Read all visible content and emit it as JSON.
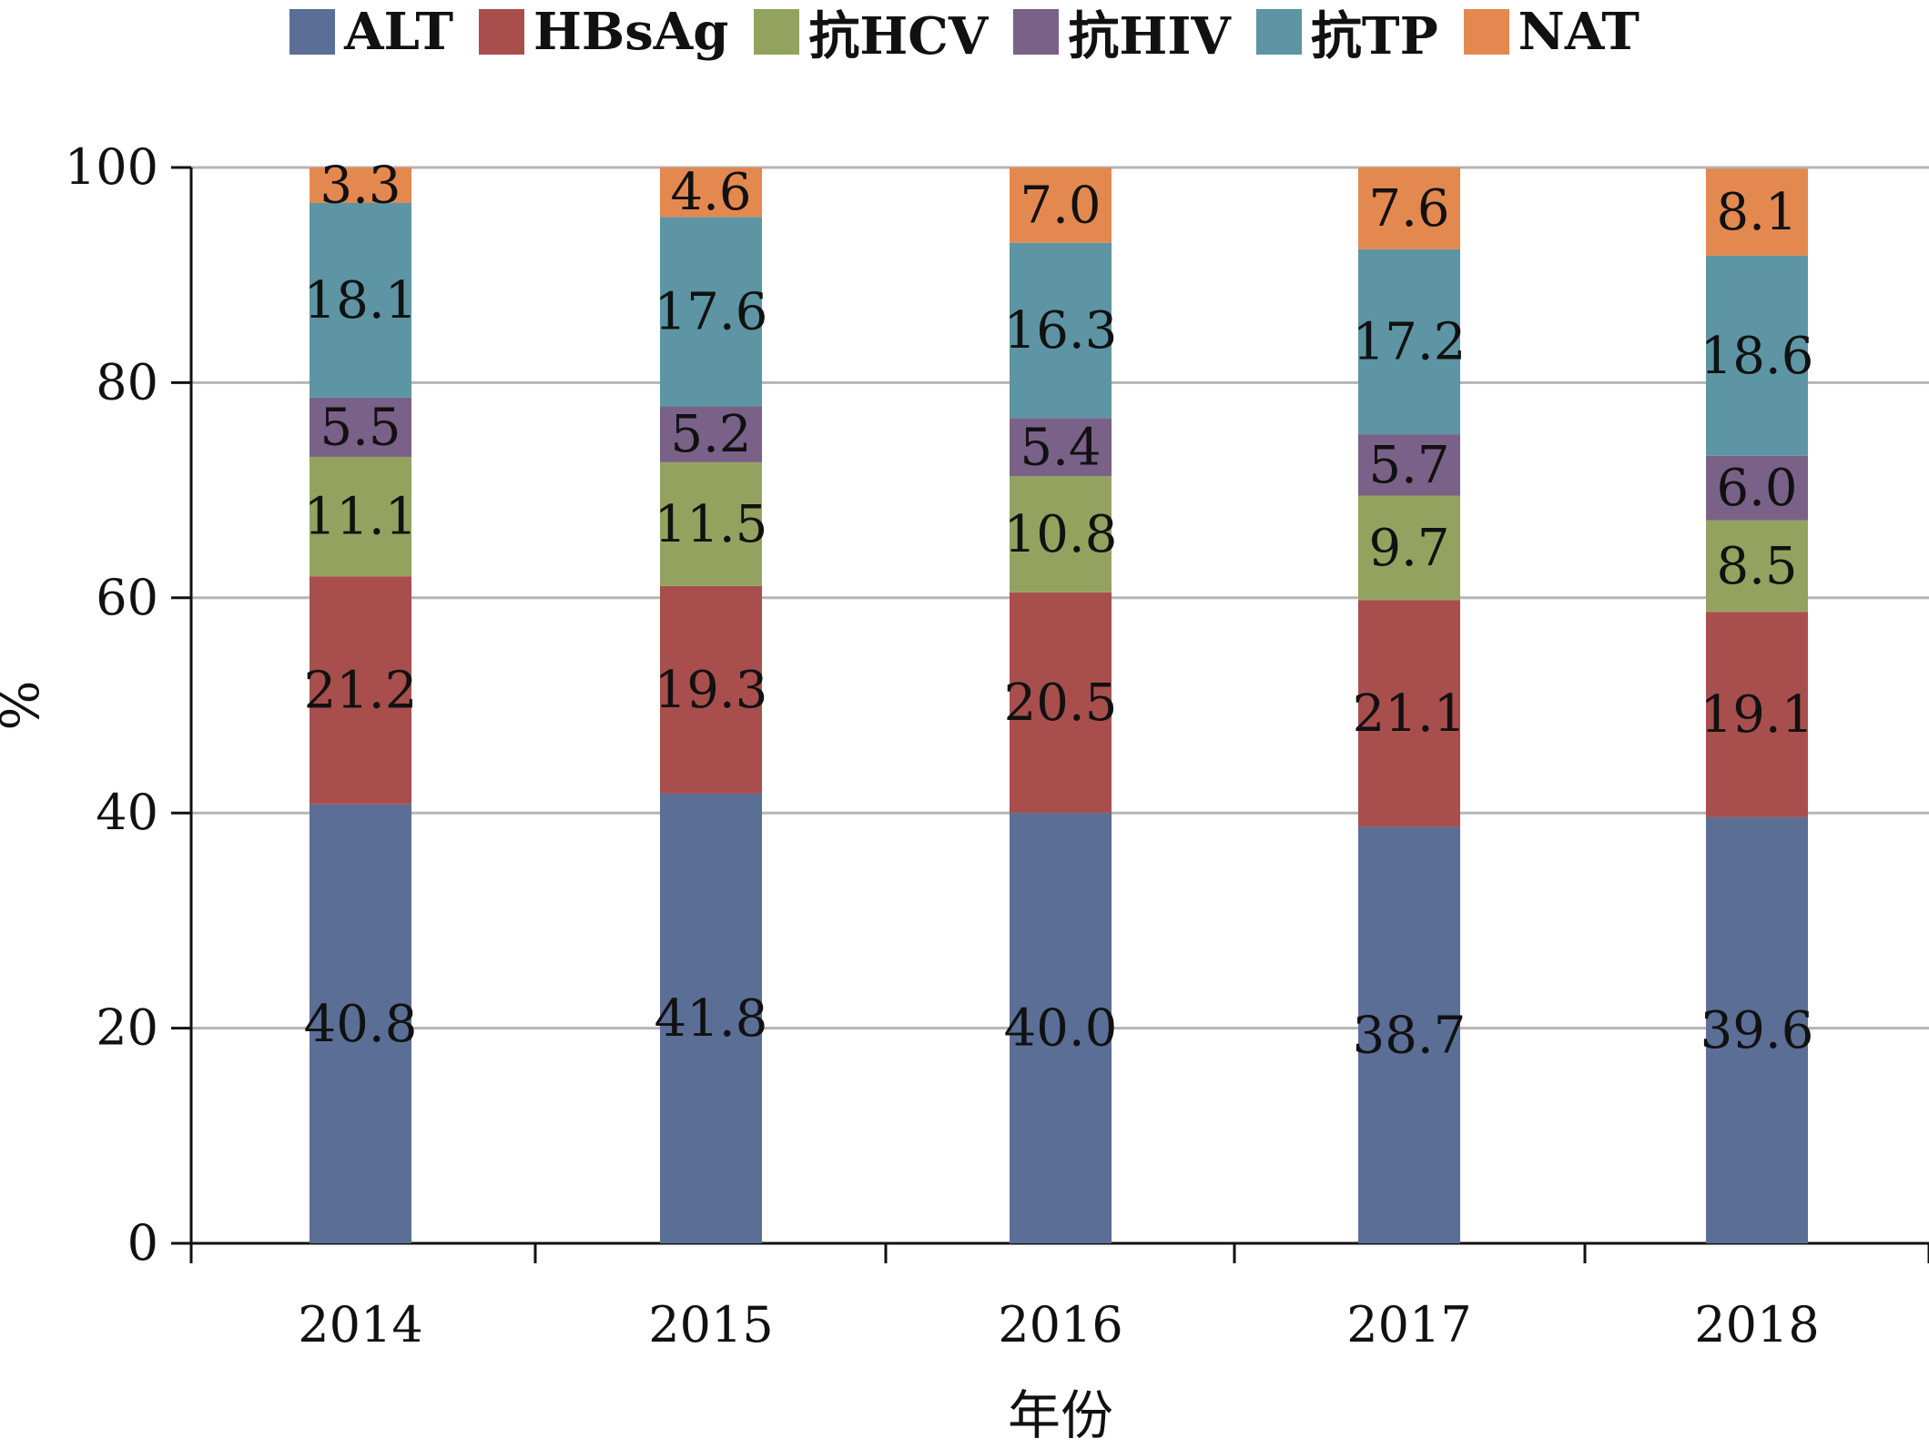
{
  "chart_data": {
    "type": "bar",
    "stacked": true,
    "title": "",
    "xlabel": "年份",
    "ylabel": "%",
    "ylim": [
      0,
      100
    ],
    "yticks": [
      0,
      20,
      40,
      60,
      80,
      100
    ],
    "grid": true,
    "legend_position": "top",
    "categories": [
      "2014",
      "2015",
      "2016",
      "2017",
      "2018"
    ],
    "series": [
      {
        "name": "ALT",
        "color": "#5b6e96",
        "values": [
          40.8,
          41.8,
          40.0,
          38.7,
          39.6
        ]
      },
      {
        "name": "HBsAg",
        "color": "#a84f4d",
        "values": [
          21.2,
          19.3,
          20.5,
          21.1,
          19.1
        ]
      },
      {
        "name": "抗HCV",
        "color": "#93a35f",
        "values": [
          11.1,
          11.5,
          10.8,
          9.7,
          8.5
        ]
      },
      {
        "name": "抗HIV",
        "color": "#7a6188",
        "values": [
          5.5,
          5.2,
          5.4,
          5.7,
          6.0
        ]
      },
      {
        "name": "抗TP",
        "color": "#5d95a4",
        "values": [
          18.1,
          17.6,
          16.3,
          17.2,
          18.6
        ]
      },
      {
        "name": "NAT",
        "color": "#e3894f",
        "values": [
          3.3,
          4.6,
          7.0,
          7.6,
          8.1
        ]
      }
    ]
  }
}
